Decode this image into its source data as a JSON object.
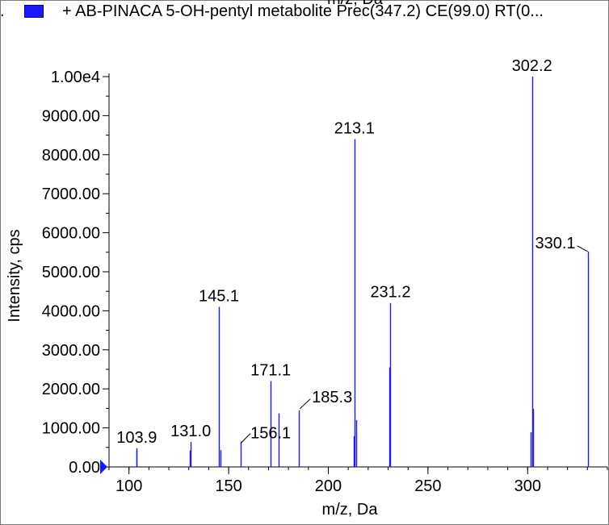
{
  "legend": {
    "swatch_color": "#1a1aff",
    "entry": "+ AB-PINACA 5-OH-pentyl metabolite Prec(347.2) CE(99.0) RT(0...",
    "top_axis_label": "m/z, Da"
  },
  "chart_data": {
    "type": "bar",
    "subtype": "mass-spectrum-stick",
    "series": [
      {
        "name": "+ AB-PINACA 5-OH-pentyl metabolite Prec(347.2) CE(99.0) RT(0...",
        "color": "#1a1aff",
        "peaks": [
          {
            "mz": 103.7,
            "intensity": 430
          },
          {
            "mz": 103.9,
            "intensity": 480
          },
          {
            "mz": 130.4,
            "intensity": 420
          },
          {
            "mz": 131.0,
            "intensity": 640
          },
          {
            "mz": 145.1,
            "intensity": 4100
          },
          {
            "mz": 145.9,
            "intensity": 430
          },
          {
            "mz": 156.1,
            "intensity": 650
          },
          {
            "mz": 171.1,
            "intensity": 2200
          },
          {
            "mz": 175.1,
            "intensity": 1370
          },
          {
            "mz": 185.3,
            "intensity": 1450
          },
          {
            "mz": 212.6,
            "intensity": 790
          },
          {
            "mz": 213.1,
            "intensity": 8400
          },
          {
            "mz": 213.9,
            "intensity": 1200
          },
          {
            "mz": 230.4,
            "intensity": 2550
          },
          {
            "mz": 231.2,
            "intensity": 4200
          },
          {
            "mz": 301.7,
            "intensity": 890
          },
          {
            "mz": 302.2,
            "intensity": 10000
          },
          {
            "mz": 302.8,
            "intensity": 1490
          },
          {
            "mz": 330.1,
            "intensity": 5520
          }
        ]
      }
    ],
    "labels": [
      {
        "text": "103.9",
        "mz": 103.9,
        "intensity": 480
      },
      {
        "text": "131.0",
        "mz": 131.0,
        "intensity": 640
      },
      {
        "text": "145.1",
        "mz": 145.1,
        "intensity": 4100
      },
      {
        "text": "156.1",
        "mz": 156.1,
        "intensity": 650,
        "leader": true
      },
      {
        "text": "171.1",
        "mz": 171.1,
        "intensity": 2200
      },
      {
        "text": "185.3",
        "mz": 185.3,
        "intensity": 1450,
        "leader": true
      },
      {
        "text": "213.1",
        "mz": 213.1,
        "intensity": 8400
      },
      {
        "text": "231.2",
        "mz": 231.2,
        "intensity": 4200
      },
      {
        "text": "302.2",
        "mz": 302.2,
        "intensity": 10000
      },
      {
        "text": "330.1",
        "mz": 330.1,
        "intensity": 5520,
        "leader": true
      }
    ],
    "xlabel": "m/z, Da",
    "ylabel": "Intensity, cps",
    "xlim": [
      90,
      340
    ],
    "ylim": [
      0,
      10000
    ],
    "x_ticks": [
      {
        "value": 100,
        "label": "100"
      },
      {
        "value": 150,
        "label": "150"
      },
      {
        "value": 200,
        "label": "200"
      },
      {
        "value": 250,
        "label": "250"
      },
      {
        "value": 300,
        "label": "300"
      }
    ],
    "y_ticks": [
      {
        "value": 0,
        "label": "0.00"
      },
      {
        "value": 1000,
        "label": "1000.00"
      },
      {
        "value": 2000,
        "label": "2000.00"
      },
      {
        "value": 3000,
        "label": "3000.00"
      },
      {
        "value": 4000,
        "label": "4000.00"
      },
      {
        "value": 5000,
        "label": "5000.00"
      },
      {
        "value": 6000,
        "label": "6000.00"
      },
      {
        "value": 7000,
        "label": "7000.00"
      },
      {
        "value": 8000,
        "label": "8000.00"
      },
      {
        "value": 9000,
        "label": "9000.00"
      },
      {
        "value": 10000,
        "label": "1.00e4"
      }
    ],
    "grid": false,
    "legend_position": "top"
  }
}
